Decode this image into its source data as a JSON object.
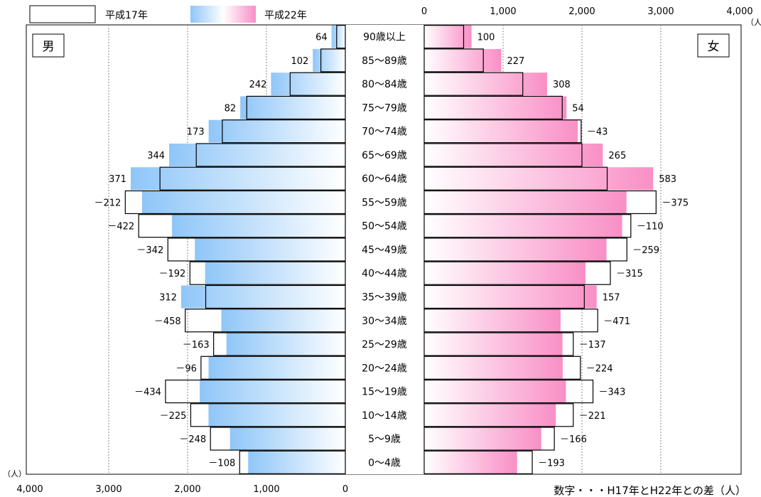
{
  "legend": {
    "h17": "平成17年",
    "h22": "平成22年"
  },
  "panels": {
    "male": "男",
    "female": "女"
  },
  "unit": "（人）",
  "footnote": "数字・・・H17年とH22年との差（人）",
  "colors": {
    "male_fill": "#8fc6f8",
    "female_fill": "#f98fc6",
    "outline": "#000000",
    "grid": "#888888"
  },
  "chart_data": {
    "type": "bar",
    "title": "",
    "series_names": [
      "平成17年",
      "平成22年"
    ],
    "xlim": [
      0,
      4000
    ],
    "x_ticks": [
      "0",
      "1,000",
      "2,000",
      "3,000",
      "4,000"
    ],
    "categories": [
      "90歳以上",
      "85～89歳",
      "80～84歳",
      "75～79歳",
      "70～74歳",
      "65～69歳",
      "60～64歳",
      "55～59歳",
      "50～54歳",
      "45～49歳",
      "40～44歳",
      "35～39歳",
      "30～34歳",
      "25～29歳",
      "20～24歳",
      "15～19歳",
      "10～14歳",
      "5～9歳",
      "0～4歳"
    ],
    "male": {
      "h17": [
        110,
        310,
        700,
        1250,
        1560,
        1890,
        2350,
        2790,
        2620,
        2250,
        1970,
        1770,
        2030,
        1670,
        1830,
        2280,
        1960,
        1710,
        1340
      ],
      "h22": [
        174,
        412,
        942,
        1332,
        1733,
        2234,
        2721,
        2578,
        2198,
        1908,
        1778,
        2082,
        1572,
        1507,
        1734,
        1846,
        1735,
        1462,
        1232
      ],
      "diff": [
        "64",
        "102",
        "242",
        "82",
        "173",
        "344",
        "371",
        "－212",
        "－422",
        "－342",
        "－192",
        "312",
        "－458",
        "－163",
        "－96",
        "－434",
        "－225",
        "－248",
        "－108"
      ]
    },
    "female": {
      "h17": [
        500,
        750,
        1250,
        1750,
        1990,
        2000,
        2320,
        2940,
        2620,
        2570,
        2360,
        2030,
        2200,
        1890,
        1980,
        2140,
        1890,
        1650,
        1370
      ],
      "h22": [
        600,
        977,
        1558,
        1804,
        1947,
        2265,
        2903,
        2565,
        2510,
        2311,
        2045,
        2187,
        1729,
        1753,
        1756,
        1797,
        1669,
        1484,
        1177
      ],
      "diff": [
        "100",
        "227",
        "308",
        "54",
        "－43",
        "265",
        "583",
        "－375",
        "－110",
        "－259",
        "－315",
        "157",
        "－471",
        "－137",
        "－224",
        "－343",
        "－221",
        "－166",
        "－193"
      ]
    }
  }
}
